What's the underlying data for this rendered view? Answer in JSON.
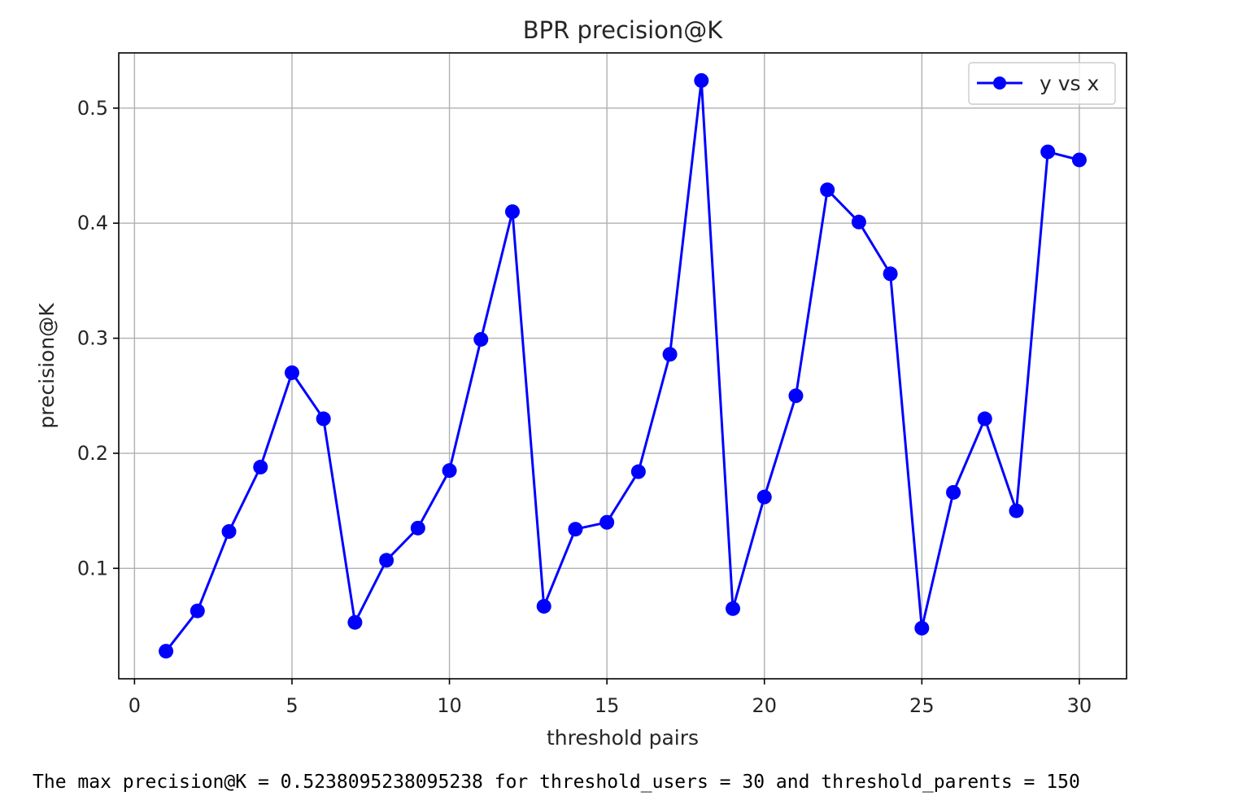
{
  "chart_data": {
    "type": "line",
    "title": "BPR precision@K",
    "xlabel": "threshold pairs",
    "ylabel": "precision@K",
    "xlim": [
      -0.5,
      31.5
    ],
    "ylim": [
      0.004,
      0.548
    ],
    "xticks": [
      0,
      5,
      10,
      15,
      20,
      25,
      30
    ],
    "xtick_labels": [
      "0",
      "5",
      "10",
      "15",
      "20",
      "25",
      "30"
    ],
    "yticks": [
      0.1,
      0.2,
      0.3,
      0.4,
      0.5
    ],
    "ytick_labels": [
      "0.1",
      "0.2",
      "0.3",
      "0.4",
      "0.5"
    ],
    "grid": true,
    "legend_position": "top-right",
    "series": [
      {
        "name": "y vs x",
        "color": "#0000ff",
        "marker": "circle",
        "x": [
          1,
          2,
          3,
          4,
          5,
          6,
          7,
          8,
          9,
          10,
          11,
          12,
          13,
          14,
          15,
          16,
          17,
          18,
          19,
          20,
          21,
          22,
          23,
          24,
          25,
          26,
          27,
          28,
          29,
          30
        ],
        "y": [
          0.028,
          0.063,
          0.132,
          0.188,
          0.27,
          0.23,
          0.053,
          0.107,
          0.135,
          0.185,
          0.299,
          0.41,
          0.067,
          0.134,
          0.14,
          0.184,
          0.286,
          0.524,
          0.065,
          0.162,
          0.25,
          0.429,
          0.401,
          0.356,
          0.048,
          0.166,
          0.23,
          0.15,
          0.462,
          0.455
        ]
      }
    ]
  },
  "output": {
    "text": "The max precision@K = 0.5238095238095238 for threshold_users = 30 and threshold_parents = 150"
  }
}
